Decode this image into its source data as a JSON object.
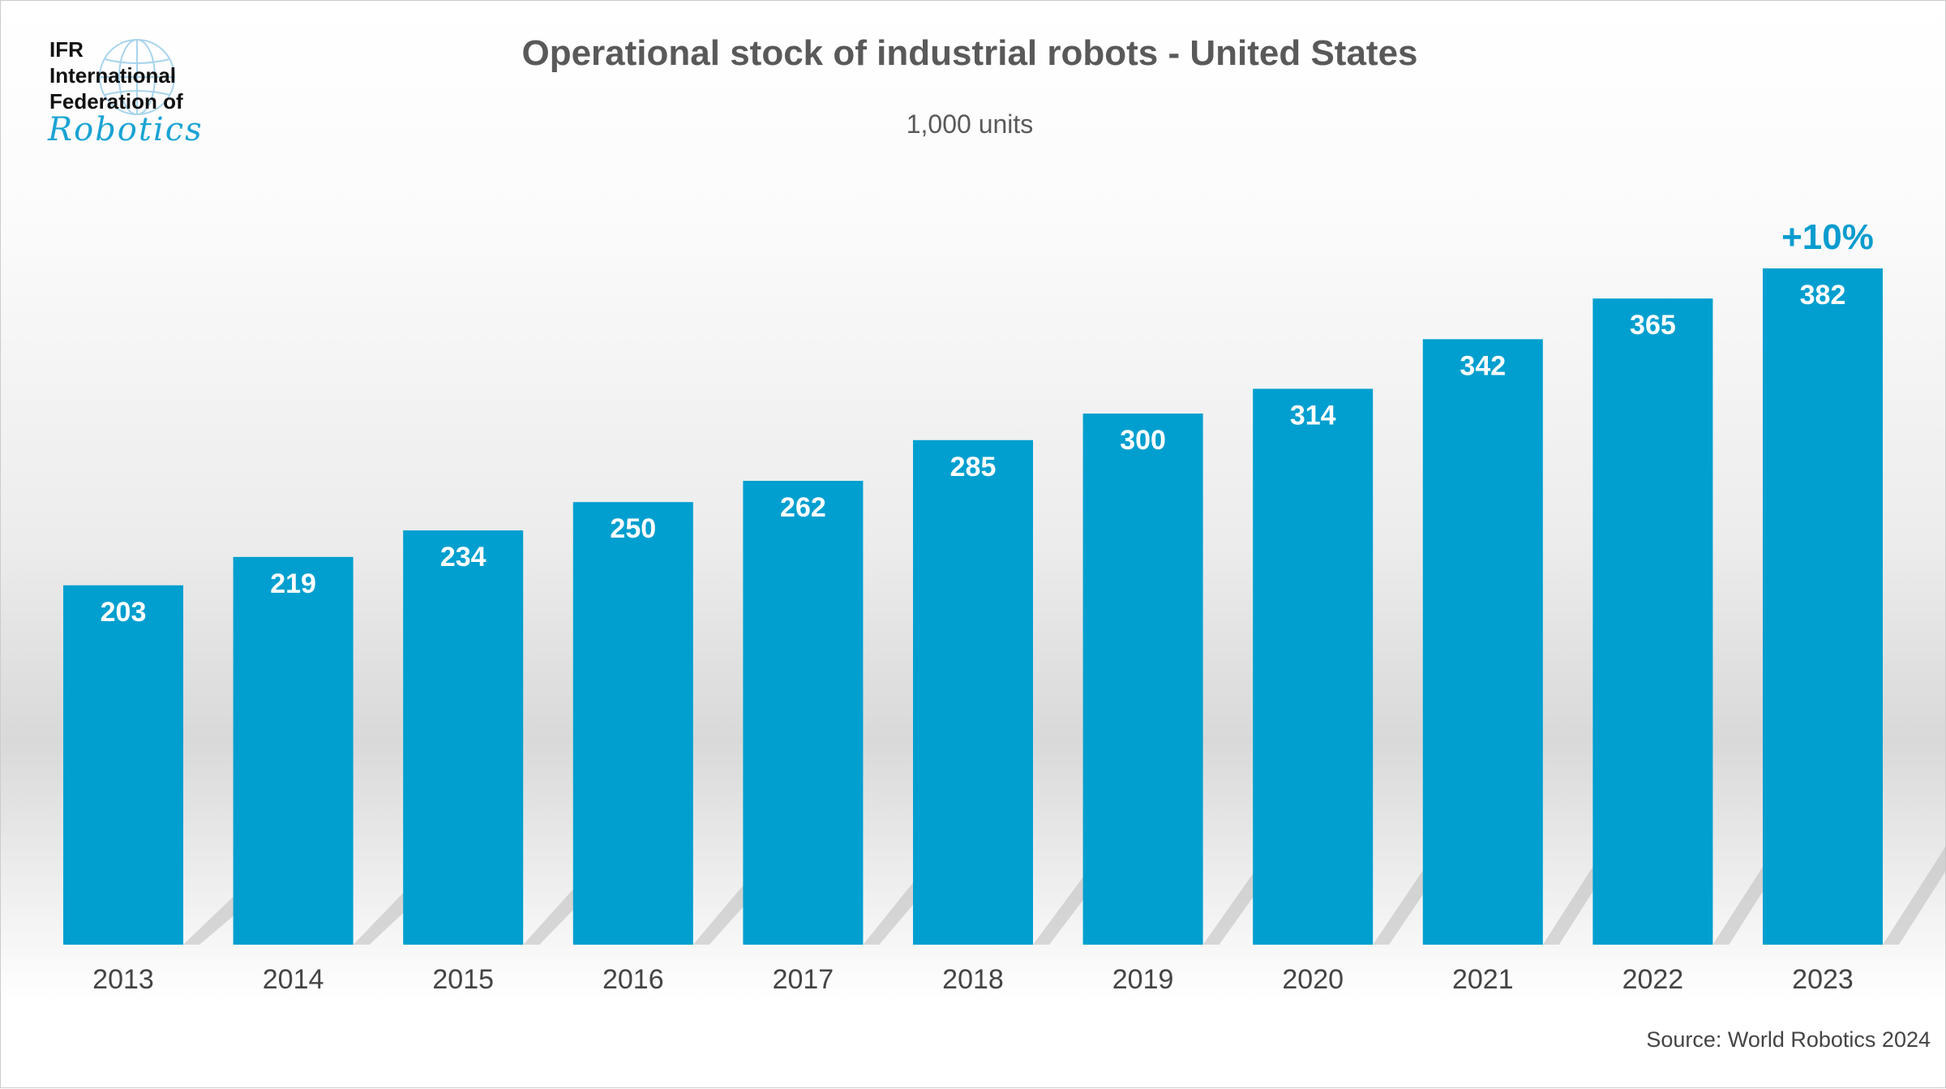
{
  "logo": {
    "line1": "IFR",
    "line2": "International",
    "line3": "Federation of",
    "line4": "Robotics"
  },
  "chart_data": {
    "type": "bar",
    "title": "Operational stock of industrial robots - United States",
    "subtitle": "1,000 units",
    "categories": [
      "2013",
      "2014",
      "2015",
      "2016",
      "2017",
      "2018",
      "2019",
      "2020",
      "2021",
      "2022",
      "2023"
    ],
    "values": [
      203,
      219,
      234,
      250,
      262,
      285,
      300,
      314,
      342,
      365,
      382
    ],
    "ylim": [
      0,
      382
    ],
    "grid": false,
    "bar_color": "#009fcf",
    "annotation": "+10%",
    "source": "Source: World Robotics 2024"
  }
}
